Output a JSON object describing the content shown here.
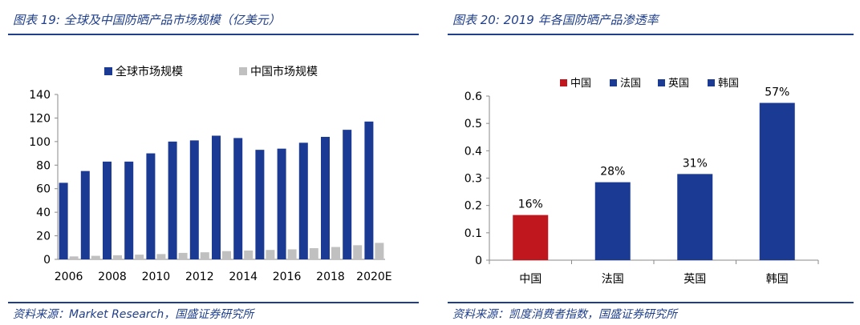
{
  "left": {
    "title": "图表 19:  全球及中国防晒产品市场规模（亿美元）",
    "source": "资料来源：Market Research，国盛证券研究所"
  },
  "right": {
    "title": "图表 20:  2019 年各国防晒产品渗透率",
    "source": "资料来源：凯度消费者指数，国盛证券研究所"
  },
  "colors": {
    "navy": "#1b3a93",
    "gray": "#c0c0c0",
    "red": "#c0161d",
    "accent": "#1f3f8c"
  },
  "chart_data": [
    {
      "type": "bar",
      "title": "",
      "categories": [
        "2006",
        "2007",
        "2008",
        "2009",
        "2010",
        "2011",
        "2012",
        "2013",
        "2014",
        "2015",
        "2016",
        "2017",
        "2018",
        "2019",
        "2020E"
      ],
      "x_tick_labels": [
        "2006",
        "2008",
        "2010",
        "2012",
        "2014",
        "2016",
        "2018",
        "2020E"
      ],
      "series": [
        {
          "name": "全球市场规模",
          "color": "#1b3a93",
          "values": [
            65,
            75,
            83,
            83,
            90,
            100,
            101,
            105,
            103,
            93,
            94,
            99,
            104,
            110,
            117
          ]
        },
        {
          "name": "中国市场规模",
          "color": "#c0c0c0",
          "values": [
            2.5,
            3,
            3.5,
            4,
            4.5,
            5.5,
            6,
            7,
            7.5,
            8,
            8.5,
            9.5,
            10.5,
            12,
            14
          ]
        }
      ],
      "ylim": [
        0,
        140
      ],
      "yticks": [
        0,
        20,
        40,
        60,
        80,
        100,
        120,
        140
      ],
      "legend_position": "top",
      "grid": false
    },
    {
      "type": "bar",
      "title": "",
      "categories": [
        "中国",
        "法国",
        "英国",
        "韩国"
      ],
      "values": [
        0.165,
        0.285,
        0.315,
        0.575
      ],
      "data_labels": [
        "16%",
        "28%",
        "31%",
        "57%"
      ],
      "colors": [
        "#c0161d",
        "#1b3a93",
        "#1b3a93",
        "#1b3a93"
      ],
      "legend": [
        "中国",
        "法国",
        "英国",
        "韩国"
      ],
      "ylim": [
        0,
        0.6
      ],
      "yticks": [
        "0",
        "0.1",
        "0.2",
        "0.3",
        "0.4",
        "0.5",
        "0.6"
      ],
      "legend_position": "top",
      "grid": false
    }
  ]
}
